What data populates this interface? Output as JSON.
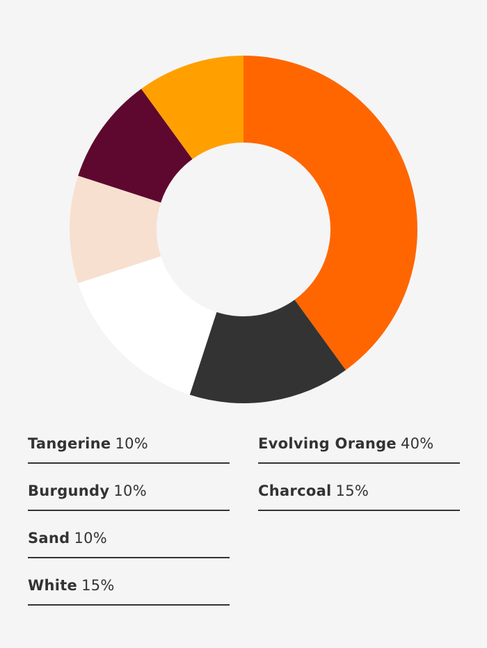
{
  "chart_data": {
    "type": "pie",
    "style": "donut",
    "categories": [
      "Evolving Orange",
      "Charcoal",
      "White",
      "Sand",
      "Burgundy",
      "Tangerine"
    ],
    "values": [
      40,
      15,
      15,
      10,
      10,
      10
    ],
    "value_labels": [
      "40%",
      "15%",
      "15%",
      "10%",
      "10%",
      "10%"
    ],
    "colors": [
      "#ff6600",
      "#333333",
      "#ffffff",
      "#f8e0d0",
      "#5e0830",
      "#ffa000"
    ],
    "start": "12 o'clock",
    "direction": "clockwise"
  },
  "legend": {
    "left": [
      {
        "name": "Tangerine",
        "pct": "10%"
      },
      {
        "name": "Burgundy",
        "pct": "10%"
      },
      {
        "name": "Sand",
        "pct": "10%"
      },
      {
        "name": "White",
        "pct": "15%"
      }
    ],
    "right": [
      {
        "name": "Evolving Orange",
        "pct": "40%"
      },
      {
        "name": "Charcoal",
        "pct": "15%"
      }
    ]
  }
}
